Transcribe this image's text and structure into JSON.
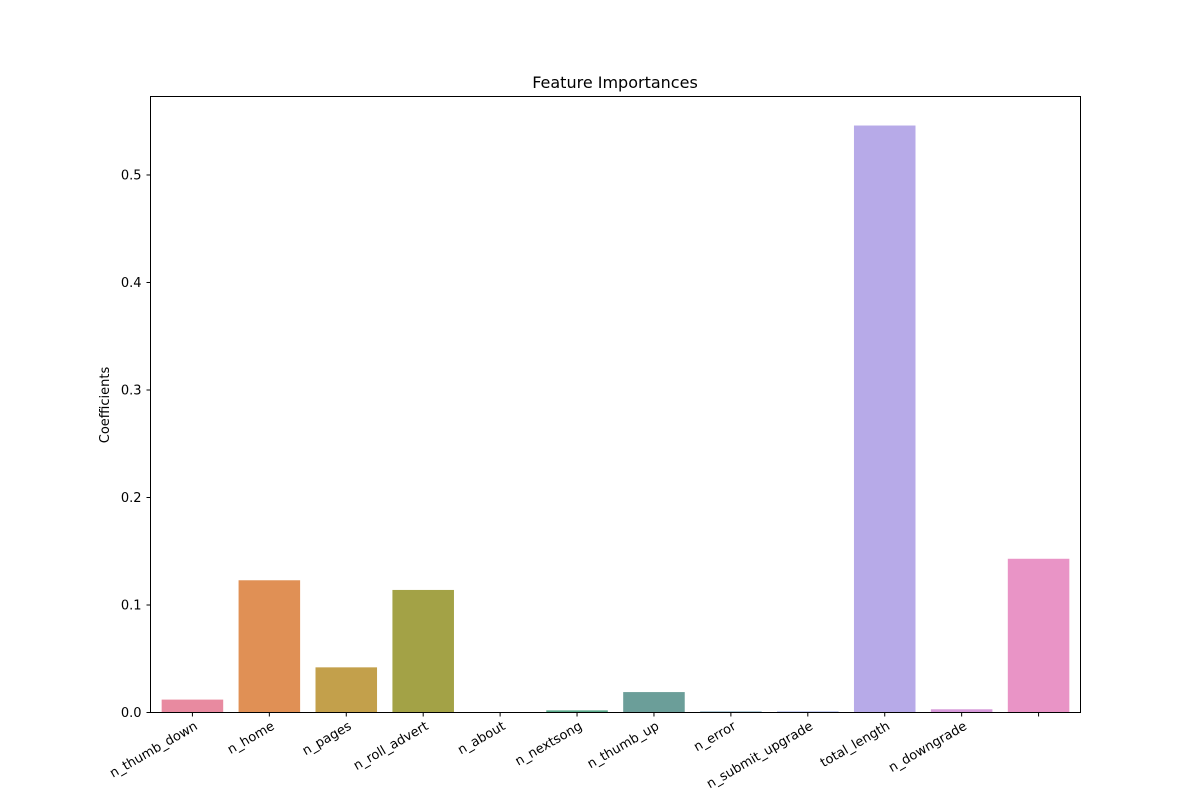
{
  "chart_data": {
    "type": "bar",
    "title": "Feature Importances",
    "xlabel": "",
    "ylabel": "Coefficients",
    "ylim": [
      0,
      0.573
    ],
    "yticks": [
      "0.0",
      "0.1",
      "0.2",
      "0.3",
      "0.4",
      "0.5"
    ],
    "grid": false,
    "categories": [
      "n_thumb_down",
      "n_home",
      "n_pages",
      "n_roll_advert",
      "n_about",
      "n_nextsong",
      "n_thumb_up",
      "n_error",
      "n_submit_upgrade",
      "total_length",
      "n_downgrade",
      ""
    ],
    "values": [
      0.012,
      0.123,
      0.042,
      0.114,
      0.0,
      0.002,
      0.019,
      0.001,
      0.001,
      0.546,
      0.003,
      0.143
    ],
    "colors": [
      "#e88aa0",
      "#e09055",
      "#c3a04b",
      "#a3a246",
      "#78a84b",
      "#5aa98a",
      "#6b9e99",
      "#76a0b4",
      "#9aa8e0",
      "#b7aae8",
      "#d79ada",
      "#e994c6"
    ]
  }
}
